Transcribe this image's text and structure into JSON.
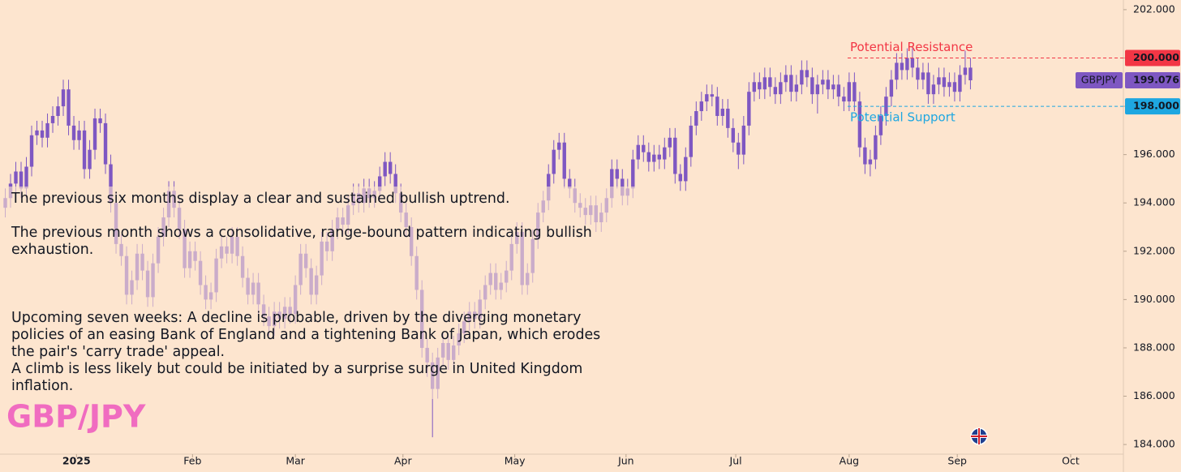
{
  "chart_data": {
    "type": "candlestick",
    "symbol": "GBP/JPY",
    "ticker": "GBPJPY",
    "color": "#7e57c2",
    "annotations": [
      "The previous six months display a clear and sustained bullish uptrend.",
      "The previous month shows a consolidative, range-bound pattern indicating bullish",
      "exhaustion.",
      "Upcoming seven weeks: A decline is probable, driven by the diverging monetary",
      "policies of an easing Bank of England and a tightening Bank of Japan, which erodes",
      "the pair's 'carry trade' appeal.",
      "A climb is less likely but could be initiated by a surprise surge in United Kingdom",
      "inflation."
    ],
    "levels": [
      {
        "name": "Potential Resistance",
        "value": 200,
        "value_label": "200.000",
        "color": "#f23645"
      },
      {
        "name": "Potential Support",
        "value": 198,
        "value_label": "198.000",
        "color": "#1ea7e1"
      }
    ],
    "xlim": [
      -1,
      212
    ],
    "xticks": [
      {
        "value": 13.5,
        "label": "2025"
      },
      {
        "value": 35.5,
        "label": "Feb"
      },
      {
        "value": 55,
        "label": "Mar"
      },
      {
        "value": 75.4,
        "label": "Apr"
      },
      {
        "value": 96.6,
        "label": "May"
      },
      {
        "value": 117.7,
        "label": "Jun"
      },
      {
        "value": 138.5,
        "label": "Jul"
      },
      {
        "value": 160,
        "label": "Aug"
      },
      {
        "value": 180.5,
        "label": "Sep"
      },
      {
        "value": 202,
        "label": "Oct"
      }
    ],
    "ylim": [
      183.6,
      202.4
    ],
    "yticks": [
      {
        "value": 184,
        "label": "184.000"
      },
      {
        "value": 186,
        "label": "186.000"
      },
      {
        "value": 188,
        "label": "188.000"
      },
      {
        "value": 190,
        "label": "190.000"
      },
      {
        "value": 192,
        "label": "192.000"
      },
      {
        "value": 194,
        "label": "194.000"
      },
      {
        "value": 196,
        "label": "196.000"
      },
      {
        "value": 198,
        "label": "198.000"
      },
      {
        "value": 200,
        "label": "200.000"
      },
      {
        "value": 202,
        "label": "202.000"
      }
    ],
    "open": [
      193.8,
      194.2,
      194.8,
      195.3,
      194.6,
      195.5,
      196.8,
      197.0,
      196.7,
      197.3,
      197.6,
      198.0,
      198.7,
      197.2,
      196.6,
      197.0,
      195.4,
      196.2,
      197.5,
      197.3,
      195.6,
      194.0,
      192.3,
      191.8,
      190.2,
      190.8,
      191.9,
      191.2,
      190.1,
      191.5,
      192.6,
      193.4,
      194.5,
      193.8,
      192.9,
      191.3,
      192.0,
      191.6,
      190.6,
      190.0,
      190.3,
      191.7,
      192.2,
      191.9,
      192.6,
      191.8,
      190.9,
      190.2,
      190.7,
      189.8,
      189.3,
      188.9,
      189.5,
      189.2,
      189.7,
      189.4,
      190.6,
      191.9,
      191.3,
      190.2,
      191.0,
      192.4,
      192.0,
      192.9,
      193.4,
      193.1,
      193.9,
      194.4,
      194.0,
      194.6,
      194.2,
      194.5,
      195.1,
      195.7,
      195.2,
      194.4,
      193.6,
      193.0,
      191.8,
      190.4,
      188.0,
      187.4,
      186.3,
      187.6,
      188.2,
      187.5,
      188.1,
      188.6,
      189.1,
      189.5,
      189.2,
      190.0,
      190.6,
      191.1,
      190.4,
      190.7,
      191.2,
      192.3,
      192.8,
      190.6,
      191.1,
      192.5,
      193.6,
      194.1,
      195.2,
      196.2,
      196.5,
      195.0,
      194.6,
      194.0,
      193.8,
      193.5,
      193.9,
      193.2,
      193.6,
      194.2,
      195.4,
      195.0,
      194.3,
      194.6,
      195.8,
      196.4,
      196.1,
      195.7,
      196.0,
      195.8,
      196.3,
      196.7,
      195.2,
      194.9,
      195.9,
      197.2,
      197.8,
      198.2,
      198.5,
      198.4,
      197.6,
      197.9,
      197.1,
      196.5,
      196.0,
      197.2,
      198.6,
      199.0,
      198.7,
      199.2,
      198.8,
      198.5,
      199.0,
      199.3,
      198.6,
      198.9,
      199.5,
      199.2,
      198.5,
      198.9,
      199.1,
      198.7,
      198.9,
      198.4,
      198.2,
      199.0,
      198.2,
      196.3,
      195.6,
      195.8,
      196.8,
      197.6,
      198.4,
      199.1,
      199.8,
      199.5,
      200.0,
      199.6,
      199.1,
      199.4,
      198.5,
      198.9,
      199.2,
      198.8,
      199.0,
      198.6,
      199.3,
      199.6
    ],
    "high": [
      194.6,
      195.2,
      195.7,
      195.7,
      195.9,
      197.2,
      197.4,
      197.4,
      197.7,
      198.0,
      198.4,
      199.1,
      199.1,
      197.6,
      197.4,
      197.4,
      196.6,
      197.9,
      197.9,
      197.7,
      196.0,
      194.4,
      192.7,
      192.2,
      191.2,
      192.3,
      192.3,
      191.6,
      191.9,
      193.0,
      193.8,
      194.9,
      194.9,
      194.2,
      193.3,
      192.4,
      192.4,
      192.0,
      191.0,
      190.7,
      192.1,
      192.6,
      192.6,
      193.0,
      193.0,
      192.2,
      191.3,
      191.1,
      191.1,
      190.2,
      189.7,
      189.9,
      189.9,
      190.1,
      190.1,
      191.0,
      192.3,
      192.3,
      191.7,
      191.4,
      192.8,
      192.8,
      193.3,
      193.8,
      193.8,
      194.3,
      194.8,
      194.8,
      195.0,
      195.0,
      194.9,
      195.5,
      196.1,
      196.1,
      195.6,
      194.8,
      194.0,
      193.4,
      192.2,
      190.8,
      188.4,
      187.8,
      188.0,
      188.6,
      188.6,
      188.5,
      189.0,
      189.5,
      189.9,
      189.9,
      190.4,
      191.0,
      191.5,
      191.5,
      191.1,
      191.6,
      192.7,
      193.2,
      193.2,
      191.5,
      192.9,
      194.0,
      194.5,
      195.6,
      196.6,
      196.9,
      196.9,
      195.4,
      195.0,
      194.4,
      194.2,
      194.3,
      194.3,
      194.0,
      194.6,
      195.8,
      195.8,
      195.4,
      195.0,
      196.2,
      196.8,
      196.8,
      196.5,
      196.4,
      196.4,
      196.7,
      197.1,
      197.1,
      195.6,
      196.3,
      197.6,
      198.2,
      198.6,
      198.9,
      198.9,
      198.8,
      198.3,
      198.3,
      197.5,
      196.9,
      197.6,
      199.0,
      199.4,
      199.4,
      199.6,
      199.6,
      199.2,
      199.4,
      199.7,
      199.7,
      199.3,
      199.9,
      199.9,
      199.6,
      199.3,
      199.5,
      199.5,
      199.3,
      199.3,
      198.8,
      199.4,
      199.4,
      198.6,
      196.7,
      196.2,
      197.2,
      198.0,
      198.8,
      199.5,
      200.2,
      200.2,
      200.4,
      200.4,
      200.0,
      199.8,
      199.8,
      199.3,
      199.6,
      199.6,
      199.4,
      199.4,
      199.7,
      200.3,
      200.0
    ],
    "low": [
      193.4,
      193.8,
      194.4,
      194.2,
      194.2,
      195.1,
      196.4,
      196.3,
      196.3,
      196.9,
      197.2,
      197.6,
      196.8,
      196.2,
      196.2,
      195.0,
      195.0,
      195.8,
      196.9,
      195.2,
      193.6,
      191.9,
      191.4,
      189.8,
      189.8,
      190.4,
      190.8,
      189.7,
      189.7,
      191.1,
      192.2,
      193.0,
      193.4,
      192.5,
      190.9,
      190.9,
      191.2,
      190.2,
      189.6,
      189.6,
      189.9,
      191.3,
      191.5,
      191.5,
      191.4,
      190.5,
      189.8,
      189.8,
      189.4,
      188.9,
      188.5,
      188.5,
      188.8,
      188.8,
      189.0,
      189.0,
      190.2,
      190.9,
      189.8,
      189.8,
      190.6,
      191.6,
      191.6,
      192.5,
      192.7,
      192.7,
      193.5,
      193.6,
      193.6,
      193.8,
      193.8,
      194.1,
      194.7,
      194.8,
      194.0,
      193.2,
      192.6,
      191.4,
      190.0,
      187.6,
      186.8,
      184.3,
      185.9,
      187.2,
      187.1,
      187.1,
      187.7,
      188.2,
      188.7,
      188.8,
      188.8,
      189.6,
      190.2,
      190.0,
      190.0,
      190.3,
      190.8,
      191.9,
      190.2,
      190.2,
      190.7,
      192.1,
      193.2,
      193.7,
      194.8,
      195.8,
      194.6,
      194.2,
      193.6,
      193.4,
      193.1,
      193.1,
      192.8,
      192.8,
      193.2,
      193.8,
      194.6,
      193.9,
      193.9,
      194.2,
      195.4,
      195.7,
      195.3,
      195.3,
      195.4,
      195.4,
      195.9,
      194.8,
      194.5,
      194.5,
      195.5,
      196.8,
      197.4,
      197.8,
      198.0,
      197.2,
      197.2,
      196.7,
      196.1,
      195.4,
      195.6,
      196.8,
      198.2,
      198.3,
      198.3,
      198.4,
      198.1,
      198.1,
      198.6,
      198.2,
      198.2,
      198.5,
      198.8,
      198.1,
      197.7,
      198.5,
      198.3,
      198.3,
      198.0,
      197.8,
      197.8,
      197.8,
      195.9,
      195.2,
      195.1,
      195.4,
      196.4,
      197.2,
      198.0,
      198.7,
      199.1,
      199.1,
      199.2,
      198.7,
      198.7,
      198.1,
      198.1,
      198.5,
      198.4,
      198.4,
      198.2,
      198.2,
      198.9,
      198.7
    ],
    "close": [
      194.2,
      194.8,
      195.3,
      194.6,
      195.5,
      196.8,
      197.0,
      196.7,
      197.3,
      197.6,
      198.0,
      198.7,
      197.2,
      196.6,
      197.0,
      195.4,
      196.2,
      197.5,
      197.3,
      195.6,
      194.0,
      192.3,
      191.8,
      190.2,
      190.8,
      191.9,
      191.2,
      190.1,
      191.5,
      192.6,
      193.4,
      194.5,
      193.8,
      192.9,
      191.3,
      192.0,
      191.6,
      190.6,
      190.0,
      190.3,
      191.7,
      192.2,
      191.9,
      192.6,
      191.8,
      190.9,
      190.2,
      190.7,
      189.8,
      189.3,
      188.9,
      189.5,
      189.2,
      189.7,
      189.4,
      190.6,
      191.9,
      191.3,
      190.2,
      191.0,
      192.4,
      192.0,
      192.9,
      193.4,
      193.1,
      193.9,
      194.4,
      194.0,
      194.6,
      194.2,
      194.5,
      195.1,
      195.7,
      195.2,
      194.4,
      193.6,
      193.0,
      191.8,
      190.4,
      188.0,
      187.4,
      186.3,
      187.6,
      188.2,
      187.5,
      188.1,
      188.6,
      189.1,
      189.5,
      189.2,
      190.0,
      190.6,
      191.1,
      190.4,
      190.7,
      191.2,
      192.3,
      192.8,
      190.6,
      191.1,
      192.5,
      193.6,
      194.1,
      195.2,
      196.2,
      196.5,
      195.0,
      194.6,
      194.0,
      193.8,
      193.5,
      193.9,
      193.2,
      193.6,
      194.2,
      195.4,
      195.0,
      194.3,
      194.6,
      195.8,
      196.4,
      196.1,
      195.7,
      196.0,
      195.8,
      196.3,
      196.7,
      195.2,
      194.9,
      195.9,
      197.2,
      197.8,
      198.2,
      198.5,
      198.4,
      197.6,
      197.9,
      197.1,
      196.5,
      196.0,
      197.2,
      198.6,
      199.0,
      198.7,
      199.2,
      198.8,
      198.5,
      199.0,
      199.3,
      198.6,
      198.9,
      199.5,
      199.2,
      198.5,
      198.9,
      199.1,
      198.7,
      198.9,
      198.4,
      198.2,
      199.0,
      198.2,
      196.3,
      195.6,
      195.8,
      196.8,
      197.6,
      198.4,
      199.1,
      199.8,
      199.5,
      200.0,
      199.6,
      199.1,
      199.4,
      198.5,
      198.9,
      199.2,
      198.8,
      199.0,
      198.6,
      199.3,
      199.6,
      199.076
    ]
  }
}
